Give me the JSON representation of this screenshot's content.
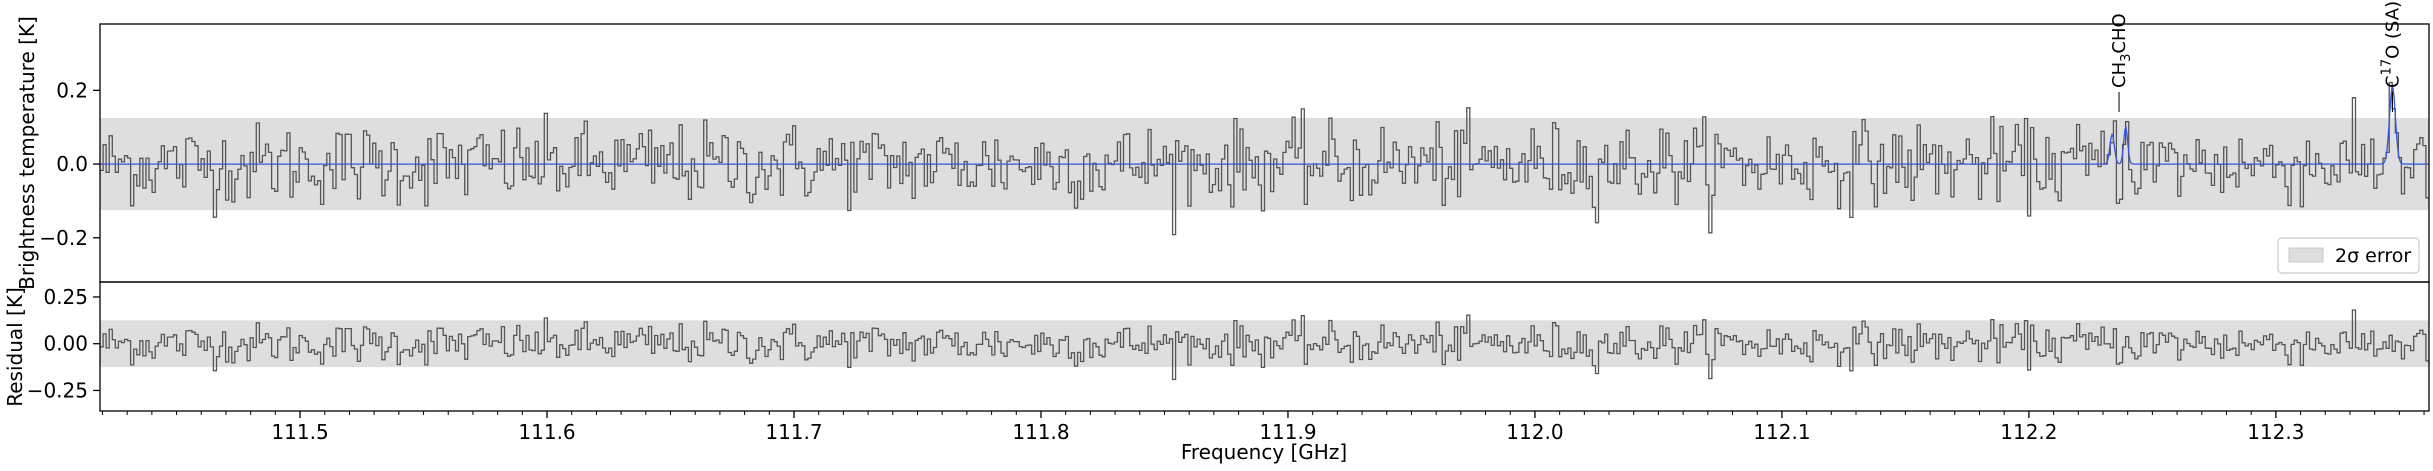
{
  "chart_data": [
    {
      "type": "line",
      "panel": "spectrum",
      "ylabel": "Brightness temperature [K]",
      "xlim": [
        111.419,
        112.362
      ],
      "ylim": [
        -0.32,
        0.38
      ],
      "yticks": [
        -0.2,
        0.0,
        0.2
      ],
      "ytick_labels": [
        "−0.2",
        "0.0",
        "0.2"
      ],
      "error_band_2sigma": [
        -0.125,
        0.125
      ],
      "legend": {
        "label": "2σ error",
        "placement": "lower-right"
      },
      "series": [
        {
          "kind": "observed",
          "style": "step",
          "color": "#555555",
          "noise_rms": 0.055
        },
        {
          "kind": "model",
          "style": "line",
          "color": "#3355dd",
          "peaks": [
            {
              "x": 112.2337,
              "amplitude": 0.08,
              "width": 0.0009
            },
            {
              "x": 112.2392,
              "amplitude": 0.1,
              "width": 0.0008
            },
            {
              "x": 112.3472,
              "amplitude": 0.21,
              "width": 0.0012
            }
          ]
        }
      ],
      "line_labels": [
        {
          "main": "CH",
          "sub": "3",
          "rest": "CHO",
          "x": 112.2365
        },
        {
          "main": "C",
          "sup": "17",
          "rest": "O (SA)",
          "x": 112.3472
        }
      ]
    },
    {
      "type": "line",
      "panel": "residual",
      "ylabel": "Residual [K]",
      "xlabel": "Frequency [GHz]",
      "xlim": [
        111.419,
        112.362
      ],
      "ylim": [
        -0.36,
        0.33
      ],
      "yticks": [
        -0.25,
        0.0,
        0.25
      ],
      "ytick_labels": [
        "−0.25",
        "0.00",
        "0.25"
      ],
      "xticks": [
        111.5,
        111.6,
        111.7,
        111.8,
        111.9,
        112.0,
        112.1,
        112.2,
        112.3
      ],
      "xtick_labels": [
        "111.5",
        "111.6",
        "111.7",
        "111.8",
        "111.9",
        "112.0",
        "112.1",
        "112.2",
        "112.3"
      ],
      "error_band_2sigma": [
        -0.125,
        0.125
      ],
      "series": [
        {
          "kind": "residual",
          "style": "step",
          "color": "#555555",
          "noise_rms": 0.055
        }
      ]
    }
  ],
  "colors": {
    "band": "#dedede",
    "observed": "#555555",
    "model": "#3355dd"
  }
}
